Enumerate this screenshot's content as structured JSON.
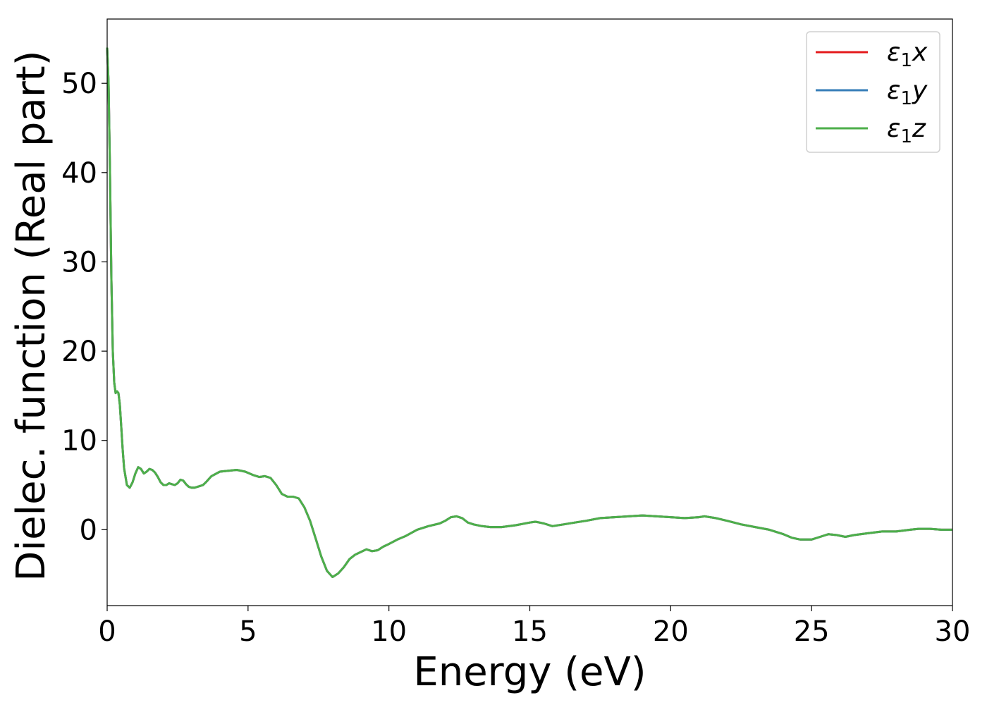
{
  "chart_data": {
    "type": "line",
    "title": "",
    "xlabel": "Energy (eV)",
    "ylabel": "Dielec. function (Real part)",
    "xlim": [
      0,
      30
    ],
    "ylim": [
      -8.5,
      57.2
    ],
    "xticks": [
      0,
      5,
      10,
      15,
      20,
      25,
      30
    ],
    "yticks": [
      0,
      10,
      20,
      30,
      40,
      50
    ],
    "grid": false,
    "legend_position": "top-right",
    "series": [
      {
        "name": "ε₁x",
        "legend_base": "ε",
        "legend_sub": "1",
        "legend_var": "x",
        "color": "#e41a1c"
      },
      {
        "name": "ε₁y",
        "legend_base": "ε",
        "legend_sub": "1",
        "legend_var": "y",
        "color": "#377eb8"
      },
      {
        "name": "ε₁z",
        "legend_base": "ε",
        "legend_sub": "1",
        "legend_var": "z",
        "color": "#4daf4a"
      }
    ],
    "x": [
      0,
      0.05,
      0.1,
      0.15,
      0.2,
      0.25,
      0.3,
      0.35,
      0.4,
      0.45,
      0.5,
      0.55,
      0.6,
      0.7,
      0.8,
      0.9,
      1.0,
      1.1,
      1.2,
      1.3,
      1.4,
      1.5,
      1.6,
      1.7,
      1.8,
      1.9,
      2.0,
      2.1,
      2.2,
      2.3,
      2.4,
      2.5,
      2.6,
      2.7,
      2.8,
      2.9,
      3.0,
      3.1,
      3.2,
      3.3,
      3.4,
      3.5,
      3.7,
      4.0,
      4.3,
      4.6,
      4.9,
      5.2,
      5.4,
      5.6,
      5.8,
      6.0,
      6.2,
      6.4,
      6.6,
      6.8,
      7.0,
      7.2,
      7.4,
      7.6,
      7.8,
      8.0,
      8.2,
      8.4,
      8.6,
      8.8,
      9.0,
      9.2,
      9.4,
      9.6,
      9.8,
      10.0,
      10.3,
      10.6,
      11.0,
      11.4,
      11.8,
      12.0,
      12.2,
      12.4,
      12.6,
      12.8,
      13.0,
      13.3,
      13.6,
      14.0,
      14.5,
      15.0,
      15.2,
      15.5,
      15.8,
      16.2,
      16.6,
      17.0,
      17.5,
      18.0,
      18.5,
      19.0,
      19.5,
      20.0,
      20.5,
      21.0,
      21.2,
      21.6,
      22.0,
      22.5,
      23.0,
      23.5,
      24.0,
      24.3,
      24.6,
      25.0,
      25.3,
      25.6,
      25.9,
      26.2,
      26.5,
      27.0,
      27.5,
      28.0,
      28.5,
      28.8,
      29.2,
      29.6,
      30.0
    ],
    "values": [
      54.0,
      50.0,
      40.0,
      28.0,
      20.0,
      16.5,
      15.3,
      15.5,
      15.3,
      14.0,
      11.5,
      9.0,
      6.9,
      5.0,
      4.7,
      5.3,
      6.3,
      7.0,
      6.8,
      6.3,
      6.5,
      6.8,
      6.7,
      6.4,
      5.9,
      5.3,
      5.0,
      5.0,
      5.2,
      5.1,
      5.0,
      5.2,
      5.6,
      5.5,
      5.1,
      4.8,
      4.7,
      4.7,
      4.8,
      4.9,
      5.0,
      5.3,
      6.0,
      6.5,
      6.6,
      6.7,
      6.5,
      6.1,
      5.9,
      6.0,
      5.8,
      5.0,
      4.0,
      3.7,
      3.7,
      3.5,
      2.5,
      1.0,
      -1.0,
      -3.0,
      -4.6,
      -5.3,
      -4.9,
      -4.2,
      -3.3,
      -2.8,
      -2.5,
      -2.2,
      -2.4,
      -2.3,
      -1.9,
      -1.6,
      -1.1,
      -0.7,
      0.0,
      0.4,
      0.7,
      1.0,
      1.4,
      1.5,
      1.3,
      0.8,
      0.6,
      0.4,
      0.3,
      0.3,
      0.5,
      0.8,
      0.9,
      0.7,
      0.4,
      0.6,
      0.8,
      1.0,
      1.3,
      1.4,
      1.5,
      1.6,
      1.5,
      1.4,
      1.3,
      1.4,
      1.5,
      1.3,
      1.0,
      0.6,
      0.3,
      0.0,
      -0.5,
      -0.9,
      -1.1,
      -1.1,
      -0.8,
      -0.5,
      -0.6,
      -0.8,
      -0.6,
      -0.4,
      -0.2,
      -0.2,
      0.0,
      0.1,
      0.1,
      0.0,
      0.0
    ]
  }
}
